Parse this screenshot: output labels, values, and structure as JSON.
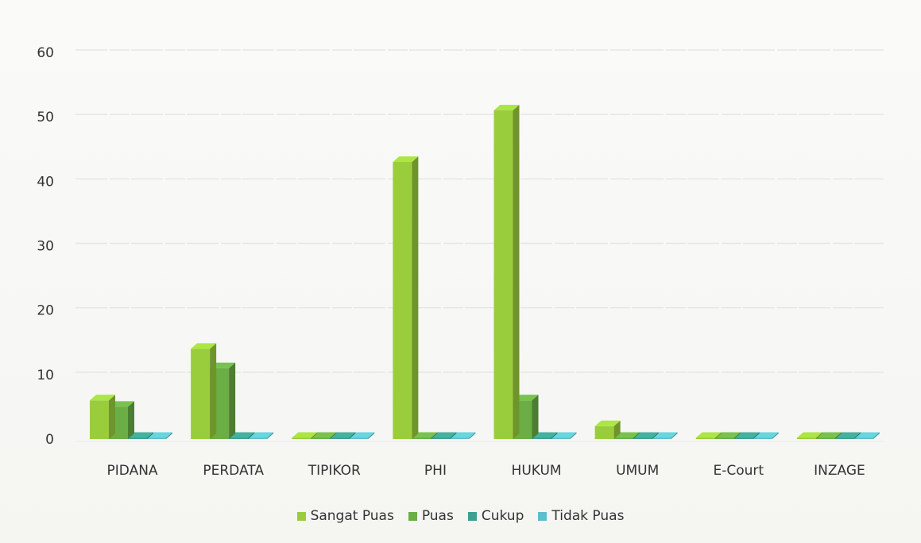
{
  "chart_data": {
    "type": "bar",
    "style": "3d-clustered-column",
    "categories": [
      "PIDANA",
      "PERDATA",
      "TIPIKOR",
      "PHI",
      "HUKUM",
      "UMUM",
      "E-Court",
      "INZAGE"
    ],
    "series": [
      {
        "name": "Sangat Puas",
        "color": "#9ACD3C",
        "values": [
          6,
          14,
          0,
          43,
          51,
          2,
          0,
          0
        ]
      },
      {
        "name": "Puas",
        "color": "#6AAE45",
        "values": [
          5,
          11,
          0,
          0,
          6,
          0,
          0,
          0
        ]
      },
      {
        "name": "Cukup",
        "color": "#3BA08F",
        "values": [
          0,
          0,
          0,
          0,
          0,
          0,
          0,
          0
        ]
      },
      {
        "name": "Tidak Puas",
        "color": "#5BBFC9",
        "values": [
          0,
          0,
          0,
          0,
          0,
          0,
          0,
          0
        ]
      }
    ],
    "yticks": [
      "0",
      "10",
      "20",
      "30",
      "40",
      "50",
      "60"
    ],
    "ylim": [
      0,
      60
    ],
    "title": "",
    "xlabel": "",
    "ylabel": "",
    "grid": true,
    "legend_position": "bottom"
  }
}
